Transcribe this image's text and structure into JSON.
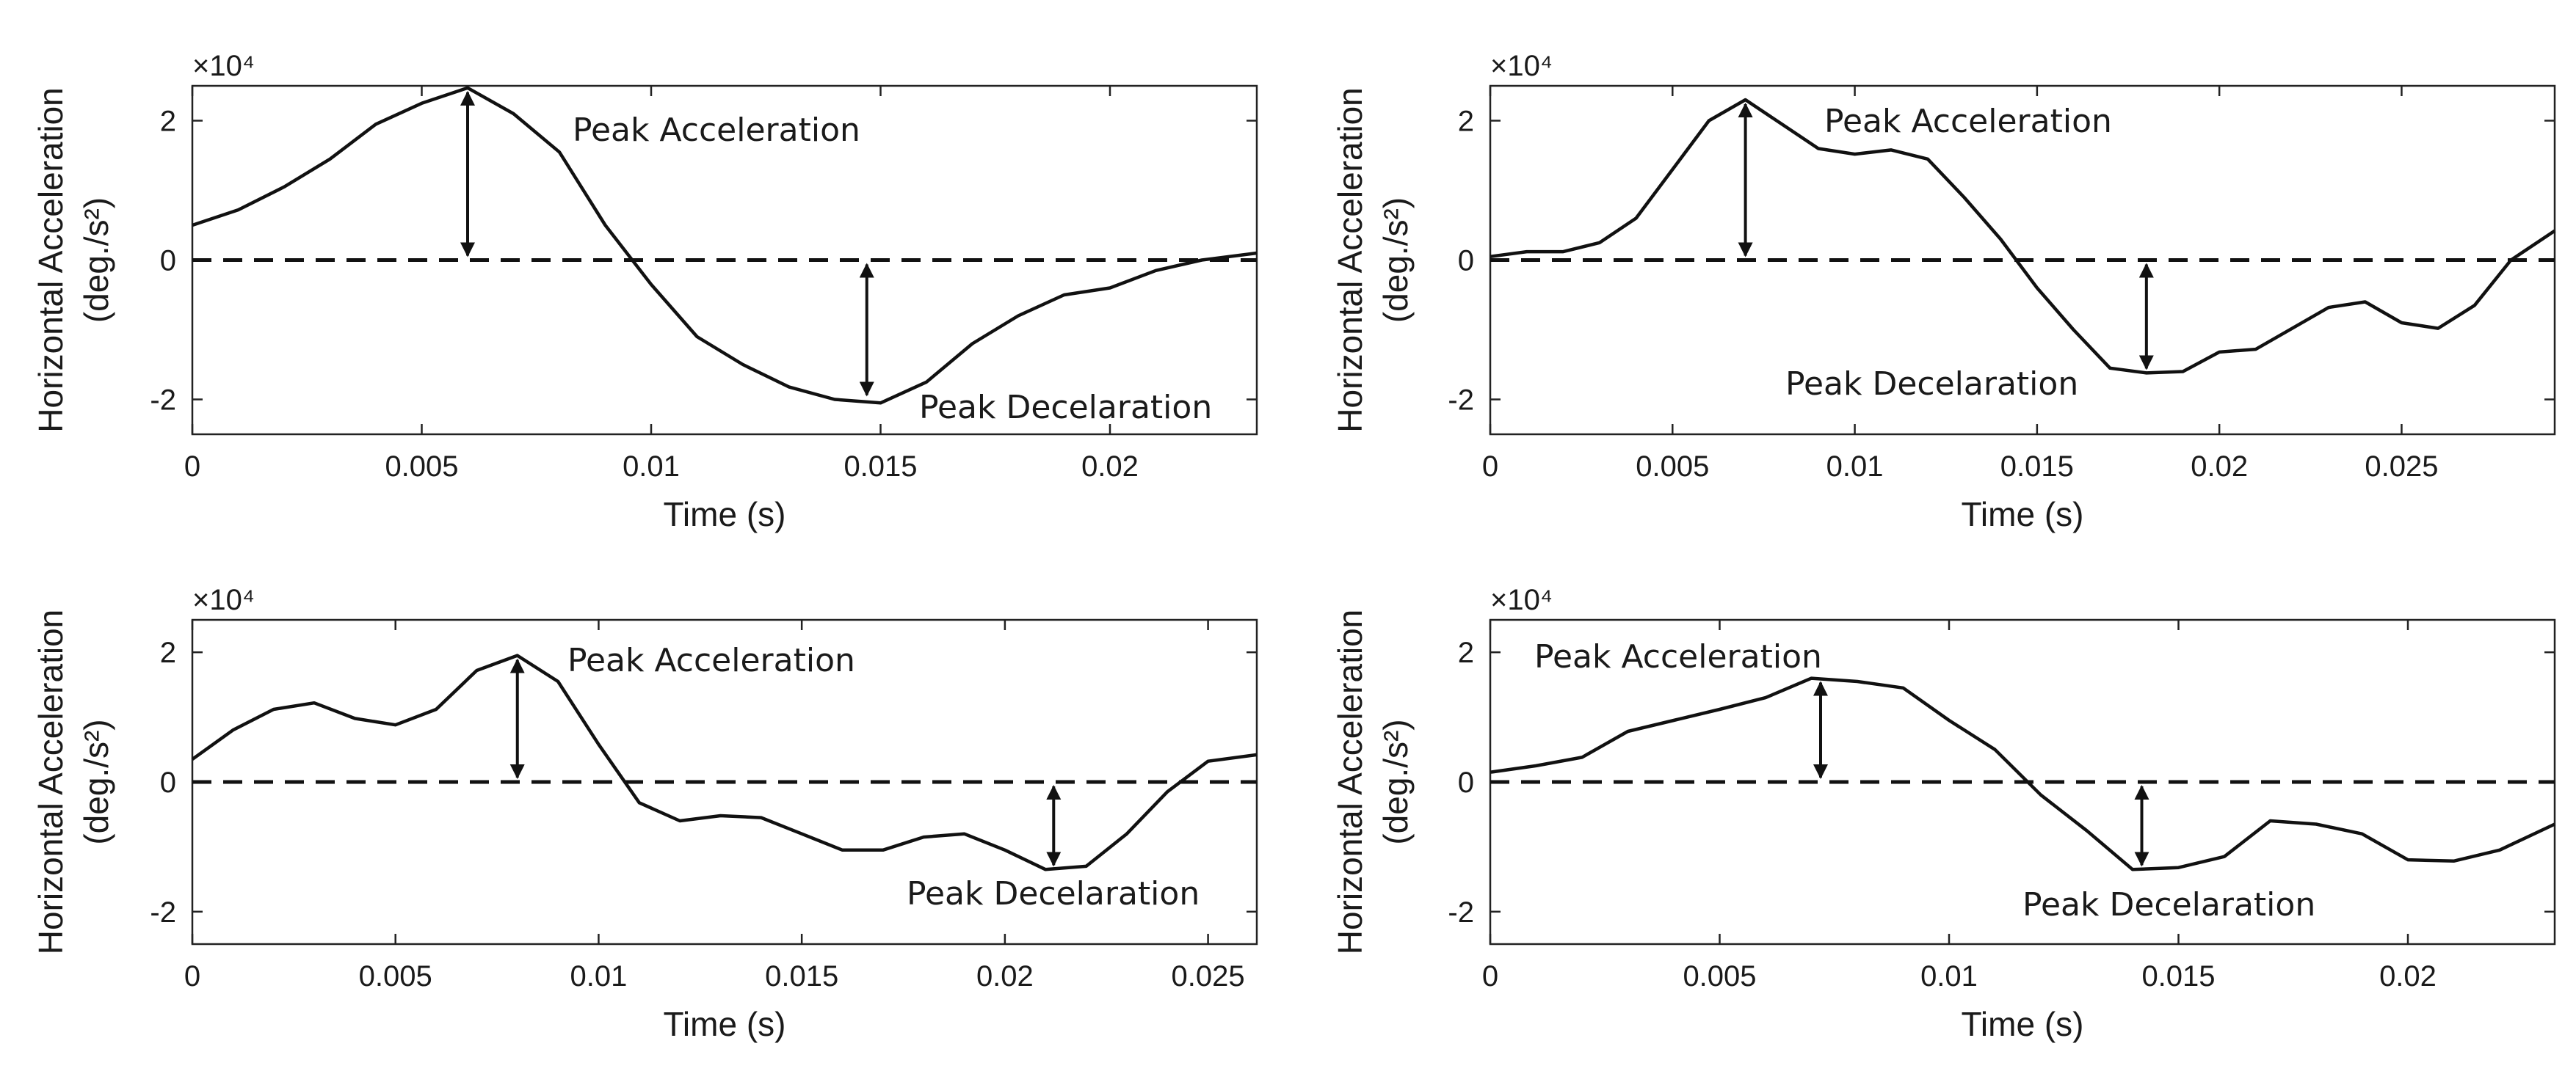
{
  "chart_data": [
    {
      "type": "line",
      "xlabel": "Time (s)",
      "ylabel_line1": "Horizontal Acceleration",
      "ylabel_line2": "(deg./s²)",
      "y_scale_label": "×10⁴",
      "xlim": [
        0,
        0.0232
      ],
      "ylim": [
        -2.5,
        2.5
      ],
      "xticks": [
        0,
        0.005,
        0.01,
        0.015,
        0.02
      ],
      "xtick_labels": [
        "0",
        "0.005",
        "0.01",
        "0.015",
        "0.02"
      ],
      "yticks": [
        -2,
        0,
        2
      ],
      "ytick_labels": [
        "-2",
        "0",
        "2"
      ],
      "zero_line": 0,
      "series": [
        {
          "x": [
            0,
            0.001,
            0.002,
            0.003,
            0.004,
            0.005,
            0.006,
            0.007,
            0.008,
            0.009,
            0.01,
            0.011,
            0.012,
            0.013,
            0.014,
            0.015,
            0.016,
            0.017,
            0.018,
            0.019,
            0.02,
            0.021,
            0.022,
            0.0232
          ],
          "y": [
            0.5,
            0.72,
            1.05,
            1.45,
            1.95,
            2.25,
            2.47,
            2.1,
            1.55,
            0.5,
            -0.35,
            -1.1,
            -1.5,
            -1.82,
            -2.0,
            -2.05,
            -1.75,
            -1.2,
            -0.8,
            -0.5,
            -0.4,
            -0.15,
            0.0,
            0.1
          ]
        }
      ],
      "annotations": [
        {
          "text": "Peak Acceleration",
          "x": 0.006,
          "y_from": 2.47,
          "y_to": 0
        },
        {
          "text": "Peak Decelaration",
          "x": 0.0147,
          "y_from": -2.0,
          "y_to": 0
        }
      ]
    },
    {
      "type": "line",
      "xlabel": "Time (s)",
      "ylabel_line1": "Horizontal Acceleration",
      "ylabel_line2": "(deg./s²)",
      "y_scale_label": "×10⁴",
      "xlim": [
        0,
        0.0292
      ],
      "ylim": [
        -2.5,
        2.5
      ],
      "xticks": [
        0,
        0.005,
        0.01,
        0.015,
        0.02,
        0.025
      ],
      "xtick_labels": [
        "0",
        "0.005",
        "0.01",
        "0.015",
        "0.02",
        "0.025"
      ],
      "yticks": [
        -2,
        0,
        2
      ],
      "ytick_labels": [
        "-2",
        "0",
        "2"
      ],
      "zero_line": 0,
      "series": [
        {
          "x": [
            0,
            0.001,
            0.002,
            0.003,
            0.004,
            0.005,
            0.006,
            0.007,
            0.008,
            0.009,
            0.01,
            0.011,
            0.012,
            0.013,
            0.014,
            0.015,
            0.016,
            0.017,
            0.018,
            0.019,
            0.02,
            0.021,
            0.022,
            0.023,
            0.024,
            0.025,
            0.026,
            0.027,
            0.028,
            0.0292
          ],
          "y": [
            0.05,
            0.12,
            0.12,
            0.25,
            0.6,
            1.3,
            2.0,
            2.3,
            1.95,
            1.6,
            1.52,
            1.58,
            1.45,
            0.9,
            0.3,
            -0.4,
            -1.0,
            -1.55,
            -1.62,
            -1.6,
            -1.32,
            -1.28,
            -0.98,
            -0.68,
            -0.6,
            -0.9,
            -0.98,
            -0.65,
            0.0,
            0.42
          ]
        }
      ],
      "annotations": [
        {
          "text": "Peak Acceleration",
          "x": 0.007,
          "y_from": 2.3,
          "y_to": 0
        },
        {
          "text": "Peak Decelaration",
          "x": 0.018,
          "y_from": -1.62,
          "y_to": 0
        }
      ]
    },
    {
      "type": "line",
      "xlabel": "Time (s)",
      "ylabel_line1": "Horizontal Acceleration",
      "ylabel_line2": "(deg./s²)",
      "y_scale_label": "×10⁴",
      "xlim": [
        0,
        0.0262
      ],
      "ylim": [
        -2.5,
        2.5
      ],
      "xticks": [
        0,
        0.005,
        0.01,
        0.015,
        0.02,
        0.025
      ],
      "xtick_labels": [
        "0",
        "0.005",
        "0.01",
        "0.015",
        "0.02",
        "0.025"
      ],
      "yticks": [
        -2,
        0,
        2
      ],
      "ytick_labels": [
        "-2",
        "0",
        "2"
      ],
      "zero_line": 0,
      "series": [
        {
          "x": [
            0,
            0.001,
            0.002,
            0.003,
            0.004,
            0.005,
            0.006,
            0.007,
            0.008,
            0.009,
            0.01,
            0.011,
            0.012,
            0.013,
            0.014,
            0.015,
            0.016,
            0.017,
            0.018,
            0.019,
            0.02,
            0.021,
            0.022,
            0.023,
            0.024,
            0.025,
            0.0262
          ],
          "y": [
            0.35,
            0.8,
            1.12,
            1.22,
            0.98,
            0.88,
            1.12,
            1.72,
            1.95,
            1.55,
            0.58,
            -0.32,
            -0.6,
            -0.52,
            -0.55,
            -0.8,
            -1.05,
            -1.05,
            -0.85,
            -0.8,
            -1.05,
            -1.35,
            -1.3,
            -0.8,
            -0.15,
            0.32,
            0.42
          ]
        }
      ],
      "annotations": [
        {
          "text": "Peak Acceleration",
          "x": 0.008,
          "y_from": 1.95,
          "y_to": 0
        },
        {
          "text": "Peak Decelaration",
          "x": 0.0212,
          "y_from": -1.35,
          "y_to": 0
        }
      ]
    },
    {
      "type": "line",
      "xlabel": "Time (s)",
      "ylabel_line1": "Horizontal Acceleration",
      "ylabel_line2": "(deg./s²)",
      "y_scale_label": "×10⁴",
      "xlim": [
        0,
        0.0232
      ],
      "ylim": [
        -2.5,
        2.5
      ],
      "xticks": [
        0,
        0.005,
        0.01,
        0.015,
        0.02
      ],
      "xtick_labels": [
        "0",
        "0.005",
        "0.01",
        "0.015",
        "0.02"
      ],
      "yticks": [
        -2,
        0,
        2
      ],
      "ytick_labels": [
        "-2",
        "0",
        "2"
      ],
      "zero_line": 0,
      "series": [
        {
          "x": [
            0,
            0.001,
            0.002,
            0.003,
            0.004,
            0.005,
            0.006,
            0.007,
            0.008,
            0.009,
            0.01,
            0.011,
            0.012,
            0.013,
            0.014,
            0.015,
            0.016,
            0.017,
            0.018,
            0.019,
            0.02,
            0.021,
            0.022,
            0.0232
          ],
          "y": [
            0.15,
            0.25,
            0.38,
            0.78,
            0.95,
            1.12,
            1.3,
            1.6,
            1.55,
            1.45,
            0.95,
            0.5,
            -0.2,
            -0.75,
            -1.35,
            -1.32,
            -1.15,
            -0.6,
            -0.65,
            -0.8,
            -1.2,
            -1.22,
            -1.05,
            -0.65
          ]
        }
      ],
      "annotations": [
        {
          "text": "Peak Acceleration",
          "x": 0.0072,
          "y_from": 1.6,
          "y_to": 0
        },
        {
          "text": "Peak Decelaration",
          "x": 0.0142,
          "y_from": -1.35,
          "y_to": 0
        }
      ]
    }
  ]
}
